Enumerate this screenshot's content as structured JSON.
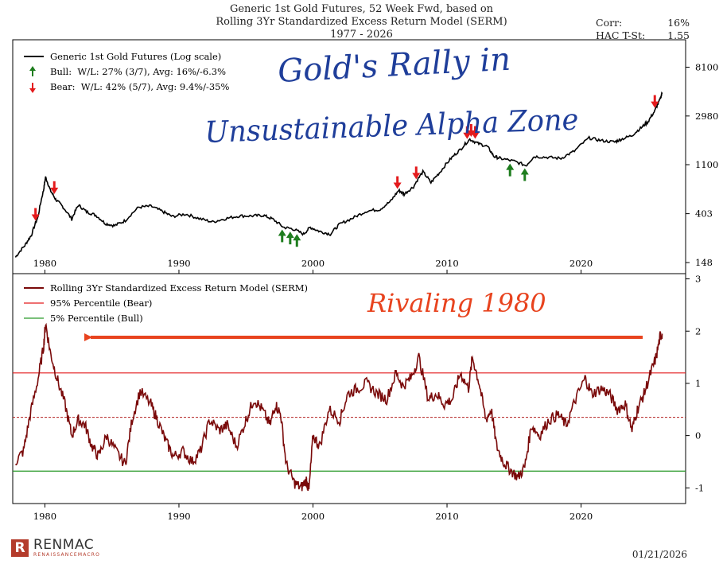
{
  "header": {
    "title_line1": "Generic 1st Gold Futures, 52 Week Fwd, based on",
    "title_line2": "Rolling 3Yr Standardized Excess Return Model (SERM)",
    "title_line3": "1977 - 2026",
    "corr_label": "Corr:",
    "corr_value": "16%",
    "tstat_label": "HAC T-St:",
    "tstat_value": "1.55"
  },
  "annotations": {
    "top_line1": "Gold's Rally in",
    "top_line2": "Unsustainable Alpha Zone",
    "bottom": "Rivaling 1980",
    "arrow_color": "#e8431e",
    "ink_blue": "#1f3e9a"
  },
  "footer": {
    "logo_letter": "R",
    "logo_name": "RENMAC",
    "logo_sub": "RENAISSANCEMACRO",
    "date": "01/21/2026"
  },
  "chart_data": [
    {
      "type": "line",
      "title": "",
      "scale": "log",
      "x_ticks": [
        "1980",
        "1990",
        "2000",
        "2010",
        "2020"
      ],
      "y_ticks": [
        "8100",
        "2980",
        "1100",
        "403",
        "148"
      ],
      "y_tick_values": [
        8100,
        2980,
        1100,
        403,
        148
      ],
      "legend": {
        "placement": "top-left",
        "series_label": "Generic 1st Gold Futures (Log scale)",
        "bull_label": "Bull:  W/L: 27% (3/7), Avg: 16%/-6.3%",
        "bear_label": "Bear:  W/L: 42% (5/7), Avg: 9.4%/-35%"
      },
      "colors": {
        "line": "#000000",
        "bull": "#1e7d1e",
        "bear": "#e41a1c"
      },
      "series": [
        {
          "name": "Generic 1st Gold Futures (Log scale)",
          "x": [
            1977.8,
            1978.5,
            1979.0,
            1979.5,
            1979.9,
            1980.05,
            1980.4,
            1980.8,
            1981.3,
            1982.0,
            1982.5,
            1983.1,
            1983.8,
            1984.5,
            1985.2,
            1986.0,
            1987.0,
            1987.9,
            1988.8,
            1989.5,
            1990.5,
            1991.5,
            1992.5,
            1993.5,
            1994.5,
            1995.5,
            1996.3,
            1997.0,
            1997.8,
            1998.5,
            1999.3,
            1999.8,
            2000.5,
            2001.3,
            2002.0,
            2003.0,
            2004.0,
            2005.0,
            2005.8,
            2006.4,
            2006.8,
            2007.5,
            2008.2,
            2008.8,
            2009.5,
            2010.3,
            2011.0,
            2011.7,
            2012.3,
            2013.0,
            2013.5,
            2014.0,
            2015.0,
            2015.9,
            2016.5,
            2017.5,
            2018.5,
            2019.5,
            2020.6,
            2021.5,
            2022.5,
            2023.0,
            2023.8,
            2024.5,
            2025.0,
            2025.5,
            2025.9,
            2026.05
          ],
          "values": [
            165,
            210,
            260,
            380,
            650,
            850,
            650,
            540,
            470,
            360,
            480,
            420,
            390,
            330,
            315,
            350,
            460,
            470,
            420,
            380,
            400,
            365,
            340,
            365,
            385,
            385,
            390,
            360,
            305,
            295,
            265,
            305,
            280,
            265,
            325,
            370,
            425,
            440,
            520,
            650,
            600,
            700,
            950,
            760,
            950,
            1250,
            1500,
            1850,
            1700,
            1600,
            1300,
            1250,
            1180,
            1080,
            1300,
            1280,
            1250,
            1450,
            1900,
            1800,
            1750,
            1850,
            2000,
            2350,
            2650,
            3300,
            4200,
            4800
          ]
        }
      ],
      "bull_signals": [
        1997.7,
        1998.3,
        1998.8,
        2014.7,
        2015.8
      ],
      "bear_signals": [
        1979.3,
        1980.7,
        2006.3,
        2007.7,
        2011.5,
        2011.8,
        2012.1,
        2025.5
      ]
    },
    {
      "type": "line",
      "title": "",
      "x_ticks": [
        "1980",
        "1990",
        "2000",
        "2010",
        "2020"
      ],
      "y_ticks": [
        "3",
        "2",
        "1",
        "0",
        "-1"
      ],
      "y_tick_values": [
        3,
        2,
        1,
        0,
        -1
      ],
      "ylim": [
        -1.3,
        3.1
      ],
      "legend": {
        "placement": "top-left",
        "series_label": "Rolling 3Yr Standardized Excess Return Model (SERM)",
        "bear_line_label": "95% Percentile (Bear)",
        "bull_line_label": "5% Percentile (Bull)"
      },
      "colors": {
        "line": "#7a0a0a",
        "bear": "#e41a1c",
        "bull": "#2a9a2a",
        "mean": "#b22222"
      },
      "thresholds": {
        "bear": 1.2,
        "bull": -0.68,
        "mean": 0.35
      },
      "series": [
        {
          "name": "Rolling 3Yr Standardized Excess Return Model (SERM)",
          "x": [
            1977.8,
            1978.4,
            1978.9,
            1979.5,
            1979.9,
            1980.05,
            1980.4,
            1980.9,
            1981.5,
            1982.0,
            1982.5,
            1983.0,
            1983.5,
            1984.0,
            1984.6,
            1985.3,
            1986.0,
            1986.5,
            1987.1,
            1987.9,
            1988.4,
            1989.0,
            1989.6,
            1990.3,
            1991.0,
            1991.6,
            1992.3,
            1993.0,
            1993.6,
            1994.3,
            1995.0,
            1995.6,
            1996.2,
            1996.8,
            1997.2,
            1997.6,
            1998.0,
            1998.6,
            1999.1,
            1999.5,
            1999.7,
            2000.0,
            2000.5,
            2001.2,
            2002.0,
            2002.6,
            2003.3,
            2004.0,
            2004.8,
            2005.5,
            2006.2,
            2006.7,
            2007.3,
            2007.9,
            2008.6,
            2009.2,
            2009.8,
            2010.4,
            2011.0,
            2011.6,
            2011.9,
            2012.4,
            2012.9,
            2013.3,
            2013.7,
            2014.2,
            2014.7,
            2015.3,
            2015.8,
            2016.3,
            2016.9,
            2017.6,
            2018.3,
            2018.9,
            2019.6,
            2020.3,
            2020.8,
            2021.5,
            2022.1,
            2022.7,
            2023.3,
            2023.8,
            2024.2,
            2024.7,
            2025.2,
            2025.6,
            2025.9,
            2026.05
          ],
          "values": [
            -0.5,
            -0.3,
            0.4,
            1.1,
            1.7,
            2.15,
            1.6,
            1.1,
            0.6,
            0.0,
            0.3,
            0.2,
            -0.2,
            -0.4,
            0.0,
            -0.3,
            -0.55,
            0.3,
            0.85,
            0.6,
            0.3,
            -0.1,
            -0.4,
            -0.3,
            -0.5,
            -0.3,
            0.3,
            0.1,
            0.2,
            -0.2,
            0.3,
            0.7,
            0.5,
            0.2,
            0.6,
            0.4,
            -0.55,
            -0.9,
            -1.0,
            -0.85,
            -1.05,
            0.0,
            -0.2,
            0.5,
            0.3,
            0.8,
            0.9,
            1.0,
            0.8,
            0.7,
            1.2,
            0.95,
            1.1,
            1.5,
            0.7,
            0.8,
            0.6,
            0.7,
            1.2,
            0.9,
            1.5,
            1.0,
            0.3,
            0.5,
            -0.2,
            -0.5,
            -0.65,
            -0.8,
            -0.6,
            0.2,
            0.0,
            0.3,
            0.4,
            0.2,
            0.7,
            1.1,
            0.8,
            0.9,
            0.8,
            0.5,
            0.6,
            0.1,
            0.5,
            0.8,
            1.2,
            1.5,
            1.9,
            1.95
          ]
        }
      ]
    }
  ]
}
